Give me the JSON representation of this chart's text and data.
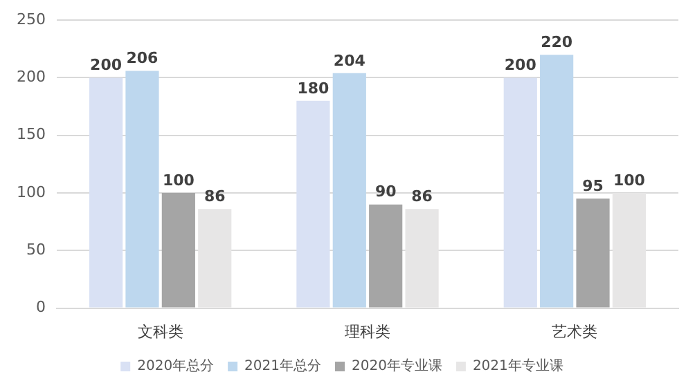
{
  "chart_data": {
    "type": "bar",
    "categories": [
      "文科类",
      "理科类",
      "艺术类"
    ],
    "series": [
      {
        "name": "2020年总分",
        "color": "#d9e1f4",
        "values": [
          200,
          180,
          200
        ]
      },
      {
        "name": "2021年总分",
        "color": "#bdd7ee",
        "values": [
          206,
          204,
          220
        ]
      },
      {
        "name": "2020年专业课",
        "color": "#a5a5a5",
        "values": [
          100,
          90,
          95
        ]
      },
      {
        "name": "2021年专业课",
        "color": "#e7e6e6",
        "values": [
          86,
          86,
          100
        ]
      }
    ],
    "ylim": [
      0,
      250
    ],
    "yticks": [
      0,
      50,
      100,
      150,
      200,
      250
    ],
    "grid": "y",
    "legend": "bottom",
    "data_labels": true
  }
}
